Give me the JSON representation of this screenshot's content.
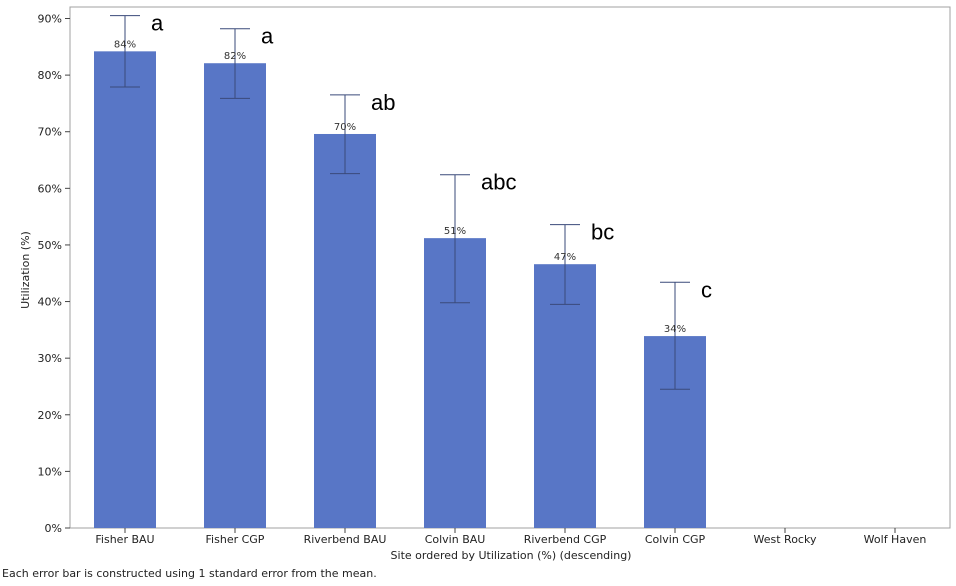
{
  "chart_data": {
    "type": "bar",
    "categories": [
      "Fisher BAU",
      "Fisher CGP",
      "Riverbend BAU",
      "Colvin BAU",
      "Riverbend CGP",
      "Colvin CGP",
      "West Rocky",
      "Wolf Haven"
    ],
    "values": [
      84.2,
      82.1,
      69.6,
      51.2,
      46.6,
      33.9,
      null,
      null
    ],
    "value_labels": [
      "84%",
      "82%",
      "70%",
      "51%",
      "47%",
      "34%",
      "",
      ""
    ],
    "error_low": [
      77.9,
      75.9,
      62.6,
      39.8,
      39.5,
      24.5,
      null,
      null
    ],
    "error_high": [
      90.5,
      88.2,
      76.5,
      62.4,
      53.6,
      43.4,
      null,
      null
    ],
    "significance_letters": [
      "a",
      "a",
      "ab",
      "abc",
      "bc",
      "c",
      "",
      ""
    ],
    "title": "",
    "xlabel": "Site ordered by Utilization (%) (descending)",
    "ylabel": "Utilization (%)",
    "ylim": [
      0,
      90
    ],
    "yticks": [
      0,
      10,
      20,
      30,
      40,
      50,
      60,
      70,
      80,
      90
    ],
    "ytick_labels": [
      "0%",
      "10%",
      "20%",
      "30%",
      "40%",
      "50%",
      "60%",
      "70%",
      "80%",
      "90%"
    ],
    "bar_color": "#5876c6",
    "grid": false
  },
  "footnote": "Each error bar is constructed using 1 standard error from the mean."
}
